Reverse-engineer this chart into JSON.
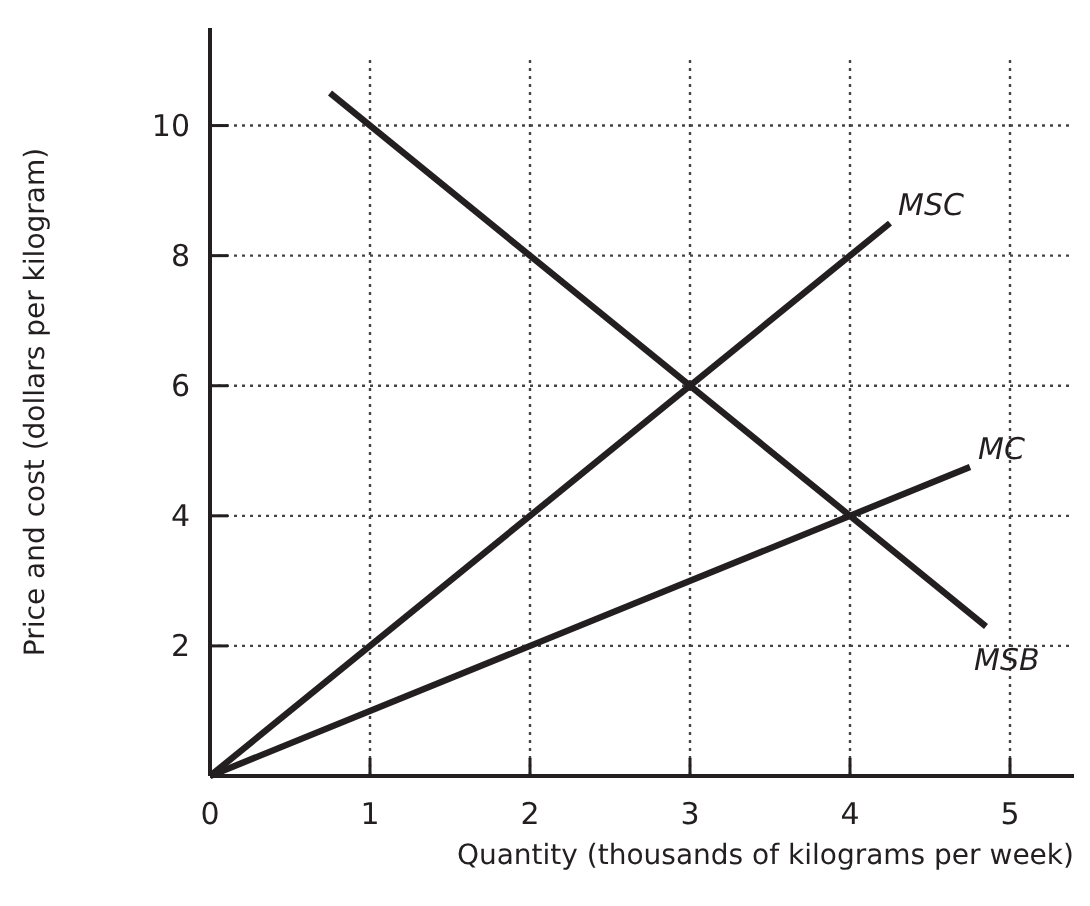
{
  "chart_data": {
    "type": "line",
    "xlabel": "Quantity (thousands of kilograms per week)",
    "ylabel": "Price and cost (dollars per kilogram)",
    "xlim": [
      0,
      5.4
    ],
    "ylim": [
      0,
      11.5
    ],
    "xticks": [
      0,
      1,
      2,
      3,
      4,
      5
    ],
    "yticks": [
      2,
      4,
      6,
      8,
      10
    ],
    "grid": true,
    "marker": "none",
    "line_style": "solid",
    "series": [
      {
        "name": "MSC",
        "color": "#231f20",
        "x": [
          0,
          4.25
        ],
        "values": [
          0,
          8.5
        ]
      },
      {
        "name": "MC",
        "color": "#231f20",
        "x": [
          0,
          4.75
        ],
        "values": [
          0,
          4.75
        ]
      },
      {
        "name": "MSB",
        "color": "#231f20",
        "x": [
          0.75,
          4.85
        ],
        "values": [
          10.5,
          2.3
        ]
      }
    ]
  }
}
